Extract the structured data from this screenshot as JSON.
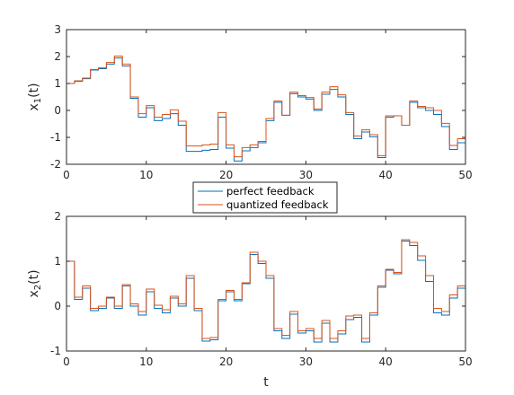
{
  "chart_data": [
    {
      "type": "line",
      "step": true,
      "ylabel": {
        "main": "x",
        "sub": "1",
        "tail": "(t)"
      },
      "xlabel": "",
      "xlim": [
        0,
        50
      ],
      "ylim": [
        -2,
        3
      ],
      "xticks": [
        0,
        10,
        20,
        30,
        40,
        50
      ],
      "yticks": [
        -2,
        -1,
        0,
        1,
        2,
        3
      ],
      "grid": false,
      "legend": {
        "placement": "below-plot",
        "entries": [
          "perfect feedback",
          "quantized feedback"
        ]
      },
      "series": [
        {
          "name": "perfect feedback",
          "color": "#0072BD",
          "values": [
            1.0,
            1.08,
            1.18,
            1.5,
            1.55,
            1.72,
            1.95,
            1.65,
            0.45,
            -0.25,
            0.1,
            -0.38,
            -0.3,
            -0.12,
            -0.55,
            -1.52,
            -1.52,
            -1.48,
            -1.45,
            -0.25,
            -1.4,
            -1.88,
            -1.5,
            -1.38,
            -1.2,
            -0.38,
            0.3,
            -0.18,
            0.62,
            0.5,
            0.42,
            0.0,
            0.6,
            0.78,
            0.5,
            -0.15,
            -1.05,
            -0.8,
            -0.98,
            -1.75,
            -0.25,
            -0.2,
            -0.55,
            0.3,
            0.1,
            0.0,
            -0.15,
            -0.6,
            -1.45,
            -1.2
          ]
        },
        {
          "name": "quantized feedback",
          "color": "#D95319",
          "values": [
            1.0,
            1.1,
            1.2,
            1.52,
            1.58,
            1.78,
            2.02,
            1.72,
            0.5,
            -0.12,
            0.18,
            -0.25,
            -0.15,
            0.02,
            -0.4,
            -1.32,
            -1.32,
            -1.28,
            -1.25,
            -0.08,
            -1.28,
            -1.72,
            -1.38,
            -1.28,
            -1.15,
            -0.3,
            0.35,
            -0.18,
            0.68,
            0.55,
            0.48,
            0.05,
            0.68,
            0.88,
            0.58,
            -0.08,
            -0.95,
            -0.72,
            -0.9,
            -1.68,
            -0.2,
            -0.2,
            -0.55,
            0.35,
            0.15,
            0.1,
            0.0,
            -0.48,
            -1.3,
            -1.05
          ]
        }
      ]
    },
    {
      "type": "line",
      "step": true,
      "ylabel": {
        "main": "x",
        "sub": "2",
        "tail": "(t)"
      },
      "xlabel": "t",
      "xlim": [
        0,
        50
      ],
      "ylim": [
        -1,
        2
      ],
      "xticks": [
        0,
        10,
        20,
        30,
        40,
        50
      ],
      "yticks": [
        -1,
        0,
        1,
        2
      ],
      "grid": false,
      "series": [
        {
          "name": "perfect feedback",
          "color": "#0072BD",
          "values": [
            1.0,
            0.15,
            0.4,
            -0.1,
            -0.05,
            0.18,
            -0.05,
            0.45,
            0.0,
            -0.2,
            0.32,
            -0.05,
            -0.15,
            0.18,
            0.0,
            0.62,
            -0.1,
            -0.78,
            -0.75,
            0.12,
            0.32,
            0.12,
            0.5,
            1.15,
            0.95,
            0.62,
            -0.55,
            -0.72,
            -0.18,
            -0.6,
            -0.55,
            -0.8,
            -0.38,
            -0.8,
            -0.62,
            -0.3,
            -0.25,
            -0.8,
            -0.2,
            0.42,
            0.8,
            0.72,
            1.45,
            1.35,
            1.02,
            0.55,
            -0.15,
            -0.2,
            0.18,
            0.4
          ]
        },
        {
          "name": "quantized feedback",
          "color": "#D95319",
          "values": [
            1.0,
            0.2,
            0.45,
            -0.05,
            0.0,
            0.2,
            0.0,
            0.48,
            0.05,
            -0.12,
            0.38,
            0.02,
            -0.08,
            0.22,
            0.05,
            0.68,
            -0.05,
            -0.72,
            -0.7,
            0.15,
            0.35,
            0.15,
            0.52,
            1.2,
            1.0,
            0.68,
            -0.5,
            -0.65,
            -0.12,
            -0.55,
            -0.5,
            -0.72,
            -0.32,
            -0.72,
            -0.55,
            -0.22,
            -0.2,
            -0.72,
            -0.15,
            0.45,
            0.82,
            0.75,
            1.48,
            1.42,
            1.12,
            0.68,
            -0.05,
            -0.12,
            0.25,
            0.45
          ]
        }
      ]
    }
  ]
}
